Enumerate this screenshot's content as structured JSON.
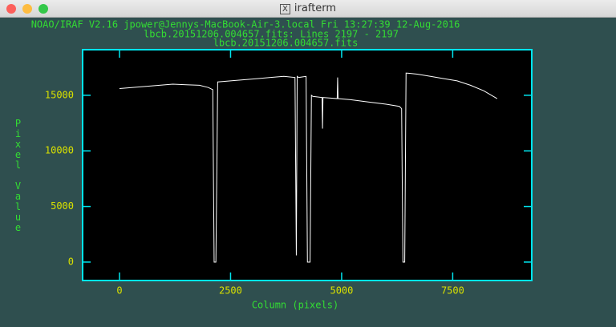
{
  "window": {
    "title": "irafterm"
  },
  "chart_data": {
    "type": "line",
    "title": "NOAO/IRAF V2.16 jpower@Jennys-MacBook-Air-3.local Fri 13:27:39 12-Aug-2016",
    "subtitles": [
      "lbcb.20151206.004657.fits: Lines 2197 - 2197",
      "lbcb.20151206.004657.fits"
    ],
    "x_label": "Column (pixels)",
    "y_label": "Pixel Value",
    "color": "#ffffff",
    "x": [
      0,
      300,
      600,
      900,
      1200,
      1500,
      1800,
      2000,
      2100,
      2130,
      2150,
      2170,
      2190,
      2210,
      2500,
      2800,
      3100,
      3400,
      3700,
      3950,
      3980,
      4000,
      4030,
      4200,
      4230,
      4290,
      4320,
      4350,
      4560,
      4570,
      4580,
      4900,
      4910,
      4920,
      5200,
      5600,
      6000,
      6300,
      6350,
      6380,
      6420,
      6450,
      6700,
      7000,
      7300,
      7600,
      7900,
      8200,
      8500
    ],
    "values": [
      15600,
      15700,
      15800,
      15900,
      16000,
      15950,
      15900,
      15700,
      15500,
      0,
      0,
      0,
      7800,
      16200,
      16300,
      16400,
      16500,
      16600,
      16700,
      16600,
      600,
      16700,
      16600,
      16700,
      0,
      0,
      15000,
      14900,
      14800,
      12000,
      14800,
      14700,
      16600,
      14700,
      14600,
      14400,
      14200,
      14000,
      13800,
      0,
      0,
      17000,
      16900,
      16700,
      16500,
      16300,
      15900,
      15400,
      14700
    ],
    "xlim": [
      -830,
      9280
    ],
    "ylim": [
      -1660,
      19100
    ],
    "xticks": [
      0,
      2500,
      5000,
      7500
    ],
    "yticks": [
      0,
      5000,
      10000,
      15000
    ]
  }
}
